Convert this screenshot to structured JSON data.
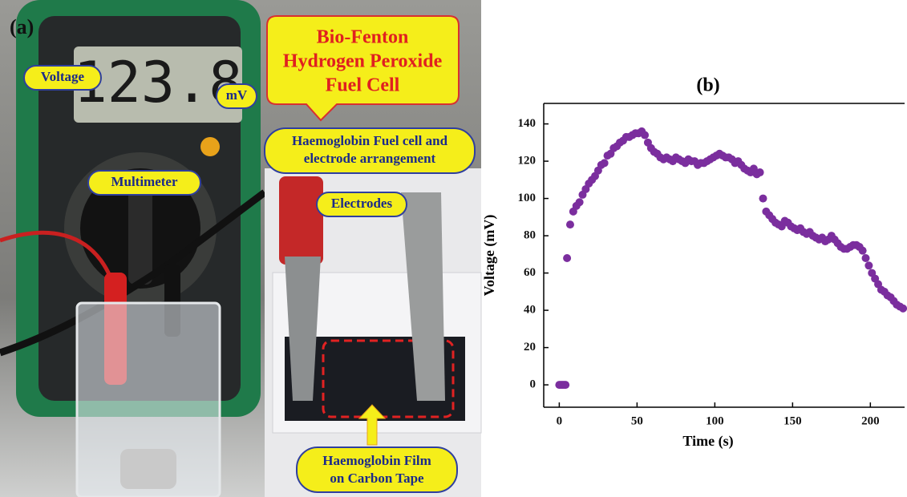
{
  "panel_a": {
    "label": "(a)",
    "display": "123.8",
    "callouts": {
      "voltage": "Voltage",
      "unit": "mV",
      "multimeter": "Multimeter",
      "title": [
        "Bio-Fenton",
        "Hydrogen Peroxide",
        "Fuel Cell"
      ],
      "arrangement": [
        "Haemoglobin Fuel cell and",
        "electrode arrangement"
      ],
      "electrodes": "Electrodes",
      "film": [
        "Haemoglobin Film",
        "on Carbon Tape"
      ]
    }
  },
  "chart_data": {
    "type": "scatter",
    "title": "(b)",
    "x_label": "Time (s)",
    "y_label": "Voltage (mV)",
    "color": "#7b2e9e",
    "x": [
      0,
      1,
      2,
      3,
      4,
      5,
      7,
      9,
      11,
      13,
      15,
      17,
      19,
      21,
      23,
      25,
      27,
      29,
      31,
      33,
      35,
      37,
      39,
      41,
      43,
      45,
      47,
      49,
      51,
      53,
      55,
      57,
      59,
      61,
      63,
      65,
      67,
      69,
      71,
      73,
      75,
      77,
      79,
      81,
      83,
      85,
      87,
      89,
      91,
      93,
      95,
      97,
      99,
      101,
      103,
      105,
      107,
      109,
      111,
      113,
      115,
      117,
      119,
      121,
      123,
      125,
      127,
      129,
      131,
      133,
      135,
      137,
      139,
      141,
      143,
      145,
      147,
      149,
      151,
      153,
      155,
      157,
      159,
      161,
      163,
      165,
      167,
      169,
      171,
      173,
      175,
      177,
      179,
      181,
      183,
      185,
      187,
      189,
      191,
      193,
      195,
      197,
      199,
      201,
      203,
      205,
      207,
      209,
      211,
      213,
      215,
      217,
      219,
      221
    ],
    "values": [
      0,
      0,
      0,
      0,
      0,
      68,
      86,
      93,
      96,
      98,
      102,
      105,
      108,
      110,
      112,
      115,
      118,
      119,
      123,
      124,
      127,
      128,
      130,
      131,
      133,
      133,
      134,
      135,
      135,
      136,
      134,
      130,
      127,
      125,
      124,
      122,
      121,
      122,
      121,
      120,
      122,
      121,
      120,
      119,
      121,
      120,
      120,
      118,
      119,
      119,
      120,
      121,
      122,
      123,
      124,
      123,
      122,
      122,
      121,
      119,
      120,
      118,
      116,
      115,
      114,
      116,
      113,
      114,
      100,
      93,
      91,
      89,
      87,
      86,
      85,
      88,
      87,
      85,
      84,
      83,
      84,
      82,
      81,
      82,
      80,
      79,
      78,
      79,
      77,
      78,
      80,
      78,
      76,
      74,
      73,
      73,
      74,
      75,
      75,
      74,
      72,
      68,
      64,
      60,
      57,
      54,
      51,
      50,
      48,
      47,
      45,
      43,
      42,
      41
    ],
    "xlim": [
      -10,
      222
    ],
    "ylim": [
      -12,
      151
    ],
    "xticks": [
      0,
      50,
      100,
      150,
      200
    ],
    "yticks": [
      0,
      20,
      40,
      60,
      80,
      100,
      120,
      140
    ]
  }
}
